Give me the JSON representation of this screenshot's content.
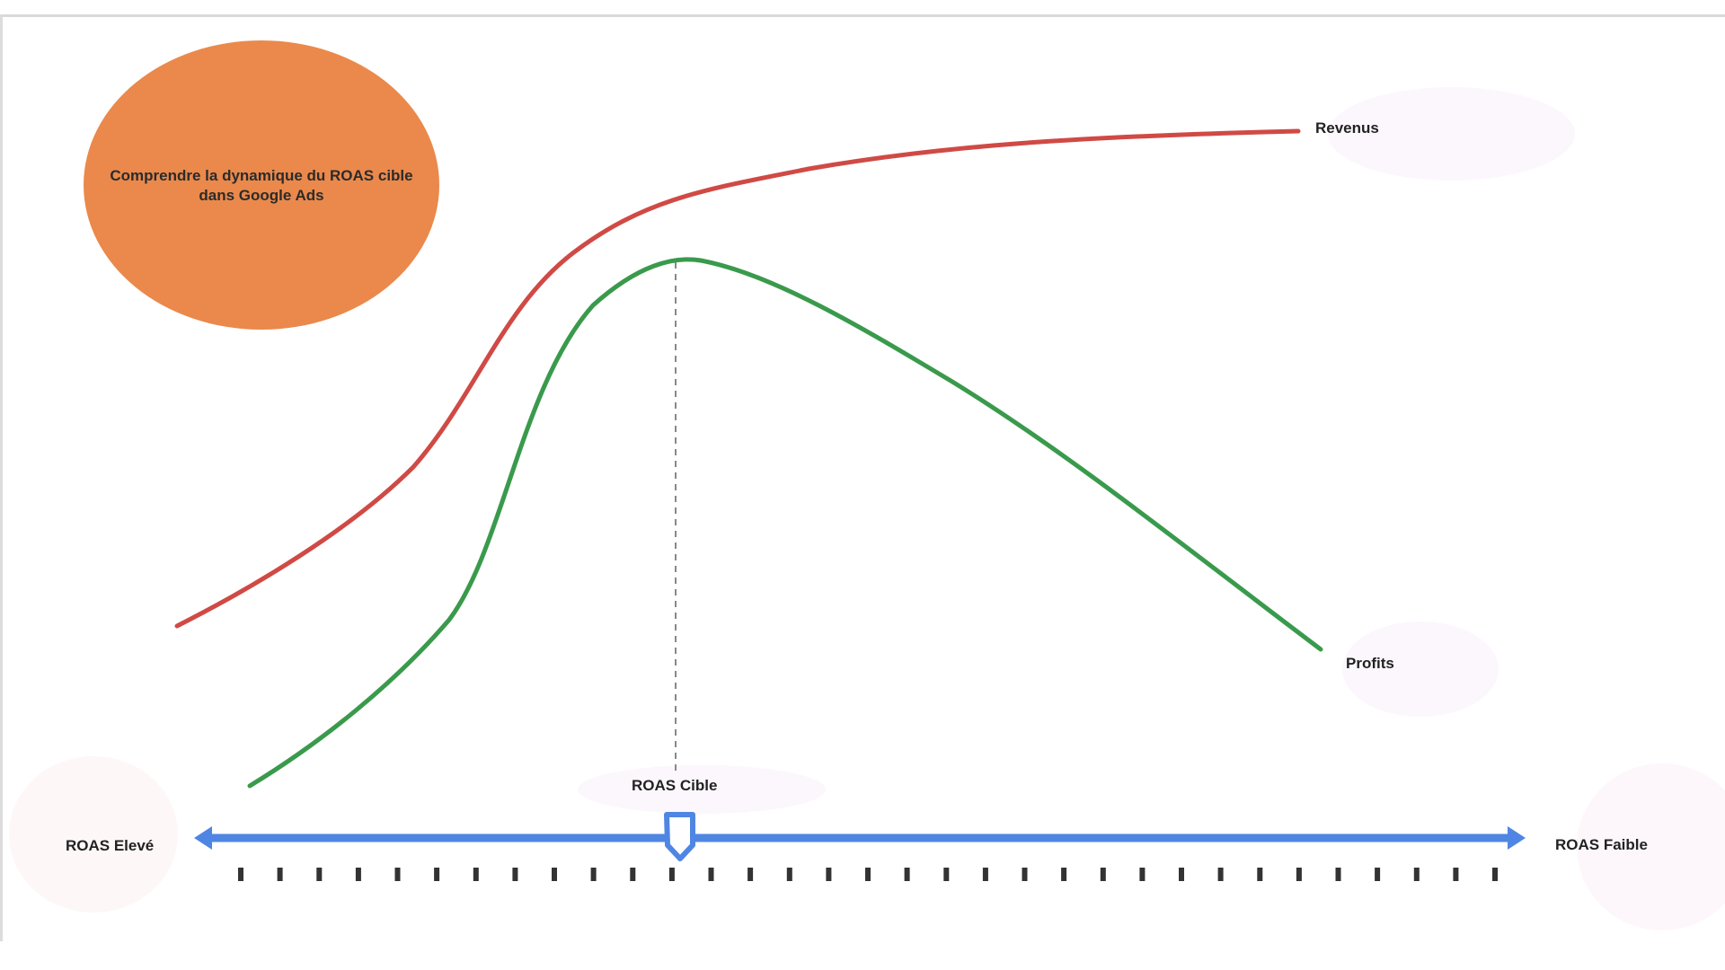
{
  "title": "Comprendre la dynamique du ROAS cible dans Google Ads",
  "labels": {
    "revenue": "Revenus",
    "profits": "Profits",
    "target": "ROAS Cible",
    "high": "ROAS Elevé",
    "low": "ROAS Faible"
  },
  "colors": {
    "title_fill": "#ea894b",
    "revenue_curve": "#d04a45",
    "profit_curve": "#3a9a4c",
    "axis": "#4f86e3",
    "ticks": "#333333",
    "marker_line": "#888888"
  },
  "scale": {
    "tick_count": 33
  }
}
